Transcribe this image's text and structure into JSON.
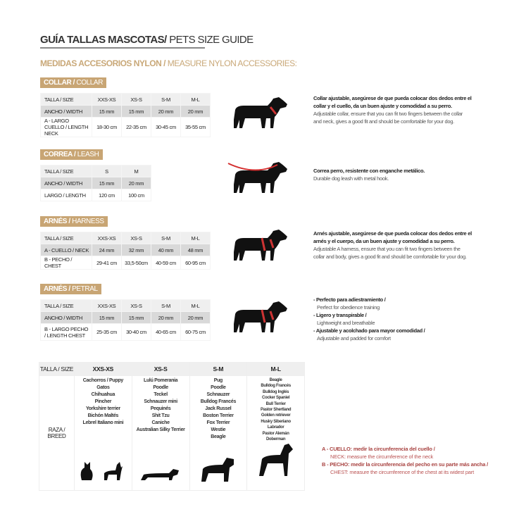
{
  "header": {
    "title_es": "GUÍA TALLAS MASCOTAS/",
    "title_en": " PETS SIZE GUIDE",
    "subtitle_es": "MEDIDAS ACCESORIOS NYLON /",
    "subtitle_en": " MEASURE NYLON ACCESSORIES:"
  },
  "colors": {
    "gold": "#c8a574",
    "red": "#a94442",
    "leash": "#d32f2f"
  },
  "sections": [
    {
      "badge_es": "COLLAR /",
      "badge_en": " COLLAR",
      "rows": [
        [
          "TALLA / SIZE",
          "XXS-XS",
          "XS-S",
          "S-M",
          "M-L"
        ],
        [
          "ANCHO / WIDTH",
          "15 mm",
          "15 mm",
          "20 mm",
          "20 mm"
        ],
        [
          "A - LARGO CUELLO / LENGTH NECK",
          "18-30 cm",
          "22-35 cm",
          "30-45 cm",
          "35-55 cm"
        ]
      ],
      "desc_es": "Collar ajustable, asegúrese de que pueda colocar dos dedos entre el collar y el cuello, da un buen ajuste y comodidad a su perro.",
      "desc_en": "Adjustable collar, ensure that you can fit two fingers between the collar and neck, gives a good fit and should be comfortable for your dog."
    },
    {
      "badge_es": "CORREA /",
      "badge_en": " LEASH",
      "rows": [
        [
          "TALLA / SIZE",
          "S",
          "M"
        ],
        [
          "ANCHO / WIDTH",
          "15 mm",
          "20 mm"
        ],
        [
          "LARGO / LENGTH",
          "120 cm",
          "100 cm"
        ]
      ],
      "desc_es": "Correa perro, resistente con enganche metálico.",
      "desc_en": "Durable dog leash with metal hook."
    },
    {
      "badge_es": "ARNÉS /",
      "badge_en": " HARNESS",
      "rows": [
        [
          "TALLA / SIZE",
          "XXS-XS",
          "XS-S",
          "S-M",
          "M-L"
        ],
        [
          "A - CUELLO / NECK",
          "24 mm",
          "32 mm",
          "40 mm",
          "48 mm"
        ],
        [
          "B - PECHO / CHEST",
          "29-41 cm",
          "33,5-50cm",
          "40-59 cm",
          "60-95 cm"
        ]
      ],
      "desc_es": "Arnés ajustable, asegúrese de que pueda colocar dos dedos entre el arnés y el cuerpo, da un buen ajuste y comodidad a su perro.",
      "desc_en": "Adjustable A harness, ensure that you can fit two fingers between the collar and body, gives a good fit and should be comfortable for your dog."
    },
    {
      "badge_es": "ARNÉS /",
      "badge_en": " PETRAL",
      "rows": [
        [
          "TALLA / SIZE",
          "XXS-XS",
          "XS-S",
          "S-M",
          "M-L"
        ],
        [
          "ANCHO / WIDTH",
          "15 mm",
          "15 mm",
          "20 mm",
          "20 mm"
        ],
        [
          "B - LARGO PECHO / LENGTH CHEST",
          "25-35 cm",
          "30-40 cm",
          "40-65 cm",
          "60-75 cm"
        ]
      ],
      "bullets": [
        {
          "es": "- Perfecto para adiestramiento /",
          "en": "Perfect for obedience training"
        },
        {
          "es": "- Ligero y transpirable /",
          "en": "Lightweight and breathable"
        },
        {
          "es": "- Ajustable y acolchado para mayor comodidad /",
          "en": "Adjustable and padded for comfort"
        }
      ]
    }
  ],
  "breeds": {
    "size_label": "TALLA /  SIZE",
    "breed_label": "RAZA / BREED",
    "columns": [
      {
        "size": "XXS-XS",
        "list": [
          "Cachorros / Puppy",
          "Gatos",
          "Chihuahua",
          "Pincher",
          "Yorkshire terrier",
          "Bichón Maltés",
          "Lebrel Italiano mini"
        ]
      },
      {
        "size": "XS-S",
        "list": [
          "Lulú Pomerania",
          "Poodle",
          "Teckel",
          "Schnauzer mini",
          "Pequinés",
          "Shit Tzu",
          "Caniche",
          "Australian Silky Terrier"
        ]
      },
      {
        "size": "S-M",
        "list": [
          "Pug",
          "Poodle",
          "Schnauzer",
          "Bulldog Francés",
          "Jack Russel",
          "Boston Terrier",
          "Fox Terrier",
          "Westie",
          "Beagle"
        ]
      },
      {
        "size": "M-L",
        "list": [
          "Beagle",
          "Bulldog Francés",
          "Bulldog Inglés",
          "Cocker Spaniel",
          "Bull Terrier",
          "Pastor Shertland",
          "Golden retriever",
          "Husky Siberiano",
          "Labrador",
          "Pastor Alemán",
          "Doberman"
        ]
      }
    ]
  },
  "notes": [
    {
      "es": "A - CUELLO: medir la circunferencia del cuello /",
      "en": "NECK: measure the circumference of the neck"
    },
    {
      "es": "B - PECHO: medir la circunferencia del pecho en su parte más ancha /",
      "en": "CHEST: measure the circumference of the chest at its widest part"
    }
  ]
}
